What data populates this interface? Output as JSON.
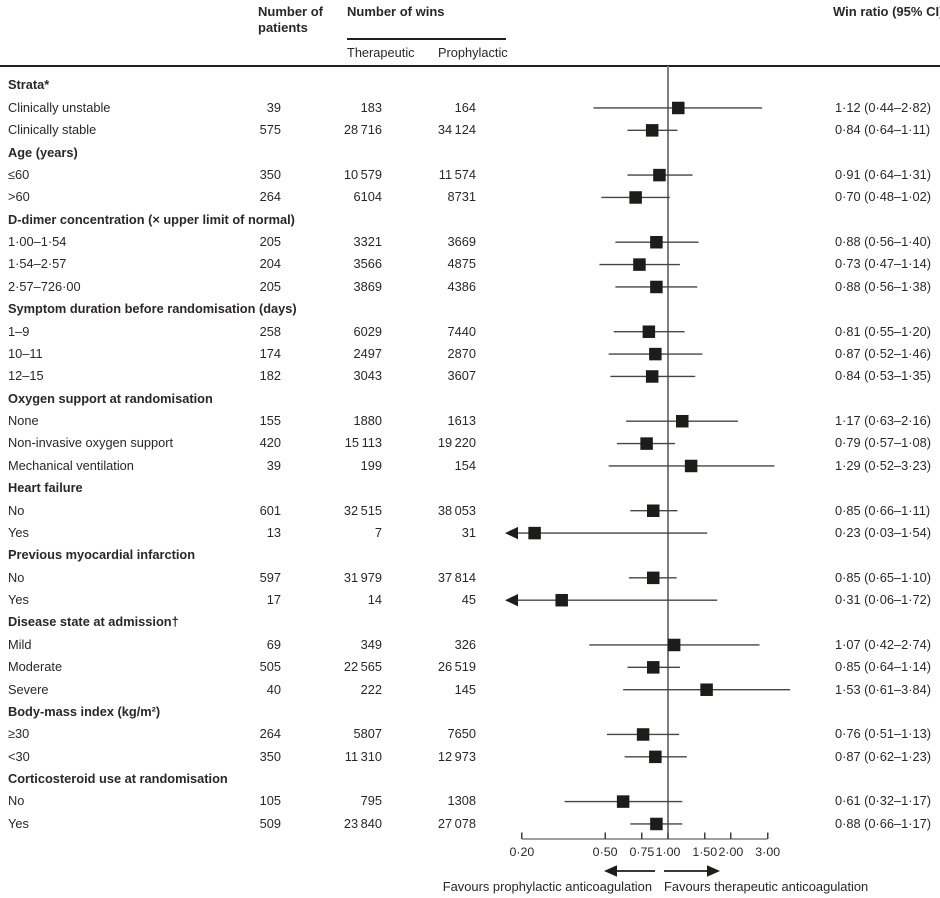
{
  "header": {
    "patients": "Number of patients",
    "wins": "Number of wins",
    "therapeutic": "Therapeutic",
    "prophylactic": "Prophylactic",
    "win_ratio": "Win ratio (95% CI)"
  },
  "footer": {
    "favours_left": "Favours prophylactic anticoagulation",
    "favours_right": "Favours therapeutic anticoagulation"
  },
  "colors": {
    "text": "#2b2728",
    "rule": "#231f20",
    "ci_line": "#454545",
    "axis_line": "#3f3f3f",
    "reference_line": "#7d7e80",
    "marker": "#1c1c1a",
    "arrow": "#1d1d1b"
  },
  "chart_data": {
    "type": "forest",
    "x_scale": "log",
    "reference_value": 1.0,
    "x_range_plotted": [
      0.18,
      3.9
    ],
    "axis_ticks": [
      {
        "value": 0.2,
        "label": "0·20"
      },
      {
        "value": 0.5,
        "label": "0·50"
      },
      {
        "value": 0.75,
        "label": "0·75"
      },
      {
        "value": 1.0,
        "label": "1·00"
      },
      {
        "value": 1.5,
        "label": "1·50"
      },
      {
        "value": 2.0,
        "label": "2·00"
      },
      {
        "value": 3.0,
        "label": "3·00"
      }
    ],
    "rows": [
      {
        "label": "Strata*",
        "group": true
      },
      {
        "label": "Clinically unstable",
        "patients": "39",
        "therapeutic": "183",
        "prophylactic": "164",
        "ratio_text": "1·12 (0·44–2·82)",
        "est": 1.12,
        "lo": 0.44,
        "hi": 2.82
      },
      {
        "label": "Clinically stable",
        "patients": "575",
        "therapeutic": "28 716",
        "prophylactic": "34 124",
        "ratio_text": "0·84 (0·64–1·11)",
        "est": 0.84,
        "lo": 0.64,
        "hi": 1.11
      },
      {
        "label": "Age (years)",
        "group": true
      },
      {
        "label": "≤60",
        "patients": "350",
        "therapeutic": "10 579",
        "prophylactic": "11 574",
        "ratio_text": "0·91 (0·64–1·31)",
        "est": 0.91,
        "lo": 0.64,
        "hi": 1.31
      },
      {
        "label": ">60",
        "patients": "264",
        "therapeutic": "6104",
        "prophylactic": "8731",
        "ratio_text": "0·70 (0·48–1·02)",
        "est": 0.7,
        "lo": 0.48,
        "hi": 1.02
      },
      {
        "label": "D-dimer concentration (× upper limit of normal)",
        "group": true
      },
      {
        "label": "1·00–1·54",
        "patients": "205",
        "therapeutic": "3321",
        "prophylactic": "3669",
        "ratio_text": "0·88 (0·56–1·40)",
        "est": 0.88,
        "lo": 0.56,
        "hi": 1.4
      },
      {
        "label": "1·54–2·57",
        "patients": "204",
        "therapeutic": "3566",
        "prophylactic": "4875",
        "ratio_text": "0·73 (0·47–1·14)",
        "est": 0.73,
        "lo": 0.47,
        "hi": 1.14
      },
      {
        "label": "2·57–726·00",
        "patients": "205",
        "therapeutic": "3869",
        "prophylactic": "4386",
        "ratio_text": "0·88 (0·56–1·38)",
        "est": 0.88,
        "lo": 0.56,
        "hi": 1.38
      },
      {
        "label": "Symptom duration before randomisation (days)",
        "group": true
      },
      {
        "label": "1–9",
        "patients": "258",
        "therapeutic": "6029",
        "prophylactic": "7440",
        "ratio_text": "0·81 (0·55–1·20)",
        "est": 0.81,
        "lo": 0.55,
        "hi": 1.2
      },
      {
        "label": "10–11",
        "patients": "174",
        "therapeutic": "2497",
        "prophylactic": "2870",
        "ratio_text": "0·87 (0·52–1·46)",
        "est": 0.87,
        "lo": 0.52,
        "hi": 1.46
      },
      {
        "label": "12–15",
        "patients": "182",
        "therapeutic": "3043",
        "prophylactic": "3607",
        "ratio_text": "0·84 (0·53–1·35)",
        "est": 0.84,
        "lo": 0.53,
        "hi": 1.35
      },
      {
        "label": "Oxygen support at randomisation",
        "group": true
      },
      {
        "label": "None",
        "patients": "155",
        "therapeutic": "1880",
        "prophylactic": "1613",
        "ratio_text": "1·17 (0·63–2·16)",
        "est": 1.17,
        "lo": 0.63,
        "hi": 2.16
      },
      {
        "label": "Non-invasive oxygen support",
        "patients": "420",
        "therapeutic": "15 113",
        "prophylactic": "19 220",
        "ratio_text": "0·79 (0·57–1·08)",
        "est": 0.79,
        "lo": 0.57,
        "hi": 1.08
      },
      {
        "label": "Mechanical ventilation",
        "patients": "39",
        "therapeutic": "199",
        "prophylactic": "154",
        "ratio_text": "1·29 (0·52–3·23)",
        "est": 1.29,
        "lo": 0.52,
        "hi": 3.23
      },
      {
        "label": "Heart failure",
        "group": true
      },
      {
        "label": "No",
        "patients": "601",
        "therapeutic": "32 515",
        "prophylactic": "38 053",
        "ratio_text": "0·85 (0·66–1·11)",
        "est": 0.85,
        "lo": 0.66,
        "hi": 1.11
      },
      {
        "label": "Yes",
        "patients": "13",
        "therapeutic": "7",
        "prophylactic": "31",
        "ratio_text": "0·23 (0·03–1·54)",
        "est": 0.23,
        "lo": 0.03,
        "hi": 1.54,
        "lo_clipped": true
      },
      {
        "label": "Previous myocardial infarction",
        "group": true
      },
      {
        "label": "No",
        "patients": "597",
        "therapeutic": "31 979",
        "prophylactic": "37 814",
        "ratio_text": "0·85 (0·65–1·10)",
        "est": 0.85,
        "lo": 0.65,
        "hi": 1.1
      },
      {
        "label": "Yes",
        "patients": "17",
        "therapeutic": "14",
        "prophylactic": "45",
        "ratio_text": "0·31 (0·06–1·72)",
        "est": 0.31,
        "lo": 0.06,
        "hi": 1.72,
        "lo_clipped": true
      },
      {
        "label": "Disease state at admission†",
        "group": true
      },
      {
        "label": "Mild",
        "patients": "69",
        "therapeutic": "349",
        "prophylactic": "326",
        "ratio_text": "1·07 (0·42–2·74)",
        "est": 1.07,
        "lo": 0.42,
        "hi": 2.74
      },
      {
        "label": "Moderate",
        "patients": "505",
        "therapeutic": "22 565",
        "prophylactic": "26 519",
        "ratio_text": "0·85 (0·64–1·14)",
        "est": 0.85,
        "lo": 0.64,
        "hi": 1.14
      },
      {
        "label": "Severe",
        "patients": "40",
        "therapeutic": "222",
        "prophylactic": "145",
        "ratio_text": "1·53 (0·61–3·84)",
        "est": 1.53,
        "lo": 0.61,
        "hi": 3.84
      },
      {
        "label": "Body-mass index (kg/m²)",
        "group": true
      },
      {
        "label": "≥30",
        "patients": "264",
        "therapeutic": "5807",
        "prophylactic": "7650",
        "ratio_text": "0·76 (0·51–1·13)",
        "est": 0.76,
        "lo": 0.51,
        "hi": 1.13
      },
      {
        "label": "<30",
        "patients": "350",
        "therapeutic": "11 310",
        "prophylactic": "12 973",
        "ratio_text": "0·87 (0·62–1·23)",
        "est": 0.87,
        "lo": 0.62,
        "hi": 1.23
      },
      {
        "label": "Corticosteroid use at randomisation",
        "group": true
      },
      {
        "label": "No",
        "patients": "105",
        "therapeutic": "795",
        "prophylactic": "1308",
        "ratio_text": "0·61 (0·32–1·17)",
        "est": 0.61,
        "lo": 0.32,
        "hi": 1.17
      },
      {
        "label": "Yes",
        "patients": "509",
        "therapeutic": "23 840",
        "prophylactic": "27 078",
        "ratio_text": "0·88 (0·66–1·17)",
        "est": 0.88,
        "lo": 0.66,
        "hi": 1.17
      }
    ]
  }
}
